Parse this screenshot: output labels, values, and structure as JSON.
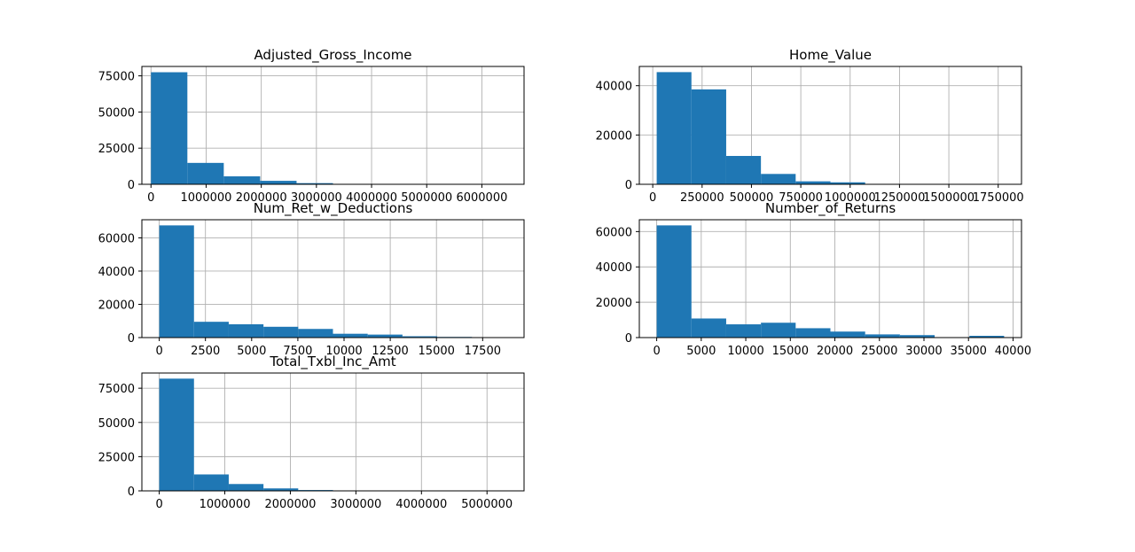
{
  "chart_data": [
    {
      "type": "bar",
      "title": "Adjusted_Gross_Income",
      "bin_edges": [
        0,
        660000,
        1320000,
        1980000,
        2640000,
        3300000,
        3960000,
        4620000,
        5280000,
        5940000,
        6600000
      ],
      "values": [
        77500,
        14800,
        5500,
        2400,
        800,
        150,
        60,
        30,
        15,
        10
      ],
      "xlim": [
        -165000,
        6765000
      ],
      "ylim": [
        0,
        81500
      ],
      "xticks": [
        0,
        1000000,
        2000000,
        3000000,
        4000000,
        5000000,
        6000000
      ],
      "yticks": [
        0,
        25000,
        50000,
        75000
      ],
      "grid": true
    },
    {
      "type": "bar",
      "title": "Home_Value",
      "bin_edges": [
        20000,
        196000,
        372000,
        548000,
        724000,
        900000,
        1076000,
        1252000,
        1428000,
        1604000,
        1780000
      ],
      "values": [
        45500,
        38500,
        11500,
        4200,
        1200,
        800,
        150,
        60,
        30,
        10
      ],
      "xlim": [
        -68000,
        1868000
      ],
      "ylim": [
        0,
        47800
      ],
      "xticks": [
        0,
        250000,
        500000,
        750000,
        1000000,
        1250000,
        1500000,
        1750000
      ],
      "yticks": [
        0,
        20000,
        40000
      ],
      "grid": true
    },
    {
      "type": "bar",
      "title": "Num_Ret_w_Deductions",
      "bin_edges": [
        0,
        1880,
        3760,
        5640,
        7520,
        9400,
        11280,
        13160,
        15040,
        16920,
        18800
      ],
      "values": [
        67500,
        9500,
        8000,
        6500,
        5200,
        2300,
        1800,
        800,
        400,
        150
      ],
      "xlim": [
        -940,
        19740
      ],
      "ylim": [
        0,
        70900
      ],
      "xticks": [
        0,
        2500,
        5000,
        7500,
        10000,
        12500,
        15000,
        17500
      ],
      "yticks": [
        0,
        20000,
        40000,
        60000
      ],
      "grid": true
    },
    {
      "type": "bar",
      "title": "Number_of_Returns",
      "bin_edges": [
        0,
        3900,
        7800,
        11700,
        15600,
        19500,
        23400,
        27300,
        31200,
        35100,
        39000
      ],
      "values": [
        63500,
        10800,
        7500,
        8400,
        5300,
        3400,
        1800,
        1400,
        200,
        1000
      ],
      "xlim": [
        -1950,
        40950
      ],
      "ylim": [
        0,
        66700
      ],
      "xticks": [
        0,
        5000,
        10000,
        15000,
        20000,
        25000,
        30000,
        35000,
        40000
      ],
      "yticks": [
        0,
        20000,
        40000,
        60000
      ],
      "grid": true
    },
    {
      "type": "bar",
      "title": "Total_Txbl_Inc_Amt",
      "bin_edges": [
        0,
        530000,
        1060000,
        1590000,
        2120000,
        2650000,
        3180000,
        3710000,
        4240000,
        4770000,
        5300000
      ],
      "values": [
        82000,
        12000,
        5000,
        1800,
        600,
        150,
        60,
        30,
        15,
        10
      ],
      "xlim": [
        -265000,
        5565000
      ],
      "ylim": [
        0,
        86100
      ],
      "xticks": [
        0,
        1000000,
        2000000,
        3000000,
        4000000,
        5000000
      ],
      "yticks": [
        0,
        25000,
        50000,
        75000
      ],
      "grid": true
    }
  ],
  "colors": {
    "bar": "#1f77b4",
    "grid": "#b0b0b0",
    "axes": "#000000"
  }
}
